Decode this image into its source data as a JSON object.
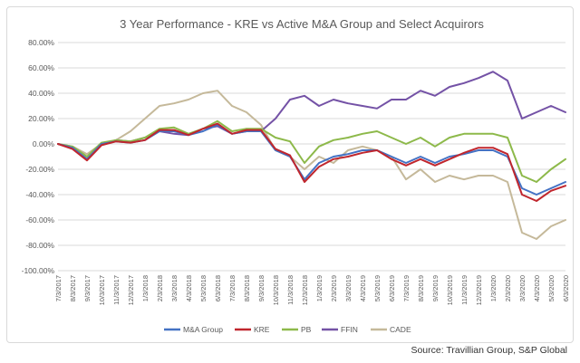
{
  "chart_data": {
    "type": "line",
    "title": "3 Year Performance - KRE vs Active M&A Group and Select Acquirors",
    "xlabel": "",
    "ylabel": "",
    "ylim": [
      -100,
      80
    ],
    "yticks": [
      80,
      60,
      40,
      20,
      0,
      -20,
      -40,
      -60,
      -80,
      -100
    ],
    "ytick_labels": [
      "80.00%",
      "60.00%",
      "40.00%",
      "20.00%",
      "0.00%",
      "-20.00%",
      "-40.00%",
      "-60.00%",
      "-80.00%",
      "-100.00%"
    ],
    "grid": true,
    "legend_position": "bottom",
    "categories": [
      "7/3/2017",
      "8/3/2017",
      "9/3/2017",
      "10/3/2017",
      "11/3/2017",
      "12/3/2017",
      "1/3/2018",
      "2/3/2018",
      "3/3/2018",
      "4/3/2018",
      "5/3/2018",
      "6/3/2018",
      "7/3/2018",
      "8/3/2018",
      "9/3/2018",
      "10/3/2018",
      "11/3/2018",
      "12/3/2018",
      "1/3/2019",
      "2/3/2019",
      "3/3/2019",
      "4/3/2019",
      "5/3/2019",
      "6/3/2019",
      "7/3/2019",
      "8/3/2019",
      "9/3/2019",
      "10/3/2019",
      "11/3/2019",
      "12/3/2019",
      "1/3/2020",
      "2/3/2020",
      "3/3/2020",
      "4/3/2020",
      "5/3/2020",
      "6/3/2020"
    ],
    "series": [
      {
        "name": "M&A Group",
        "color": "#4472c4",
        "values": [
          0,
          -3,
          -12,
          0,
          2,
          1,
          3,
          10,
          10,
          7,
          10,
          15,
          8,
          10,
          10,
          -5,
          -10,
          -28,
          -15,
          -10,
          -8,
          -5,
          -5,
          -10,
          -15,
          -10,
          -15,
          -10,
          -8,
          -5,
          -5,
          -10,
          -35,
          -40,
          -35,
          -30
        ]
      },
      {
        "name": "KRE",
        "color": "#c0262d",
        "values": [
          0,
          -4,
          -13,
          -1,
          2,
          1,
          3,
          11,
          11,
          7,
          12,
          16,
          8,
          11,
          11,
          -4,
          -9,
          -30,
          -18,
          -12,
          -10,
          -7,
          -5,
          -12,
          -17,
          -12,
          -17,
          -12,
          -7,
          -3,
          -3,
          -8,
          -40,
          -45,
          -37,
          -33
        ]
      },
      {
        "name": "PB",
        "color": "#8db94a",
        "values": [
          0,
          -2,
          -10,
          1,
          3,
          2,
          5,
          12,
          13,
          8,
          12,
          18,
          10,
          12,
          12,
          5,
          2,
          -15,
          -2,
          3,
          5,
          8,
          10,
          5,
          0,
          5,
          -2,
          5,
          8,
          8,
          8,
          5,
          -25,
          -30,
          -20,
          -12
        ]
      },
      {
        "name": "FFIN",
        "color": "#7452a6",
        "values": [
          0,
          -3,
          -12,
          0,
          3,
          2,
          5,
          10,
          8,
          7,
          12,
          14,
          8,
          10,
          10,
          20,
          35,
          38,
          30,
          35,
          32,
          30,
          28,
          35,
          35,
          42,
          38,
          45,
          48,
          52,
          57,
          50,
          20,
          25,
          30,
          25
        ]
      },
      {
        "name": "CADE",
        "color": "#c5b99a",
        "values": [
          0,
          -2,
          -8,
          0,
          3,
          10,
          20,
          30,
          32,
          35,
          40,
          42,
          30,
          25,
          15,
          -5,
          -10,
          -20,
          -10,
          -15,
          -5,
          -2,
          -5,
          -10,
          -28,
          -20,
          -30,
          -25,
          -28,
          -25,
          -25,
          -30,
          -70,
          -75,
          -65,
          -60
        ]
      }
    ]
  },
  "source": "Source: Travillian Group, S&P Global"
}
